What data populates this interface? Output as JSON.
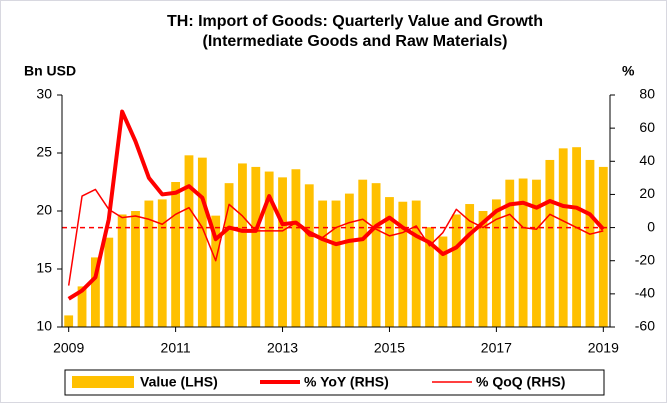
{
  "chart_data": {
    "type": "bar_line",
    "title": "TH: Import of Goods: Quarterly Value and Growth",
    "subtitle": "(Intermediate Goods and Raw Materials)",
    "ylabel": "Bn USD",
    "y2label": "%",
    "categories": [
      "2009",
      null,
      null,
      null,
      null,
      null,
      null,
      null,
      "2011",
      null,
      null,
      null,
      null,
      null,
      null,
      null,
      "2013",
      null,
      null,
      null,
      null,
      null,
      null,
      null,
      "2015",
      null,
      null,
      null,
      null,
      null,
      null,
      null,
      "2017",
      null,
      null,
      null,
      null,
      null,
      null,
      null,
      "2019"
    ],
    "series": [
      {
        "name": "Value (LHS)",
        "type": "bar",
        "color": "#FFC000",
        "values": [
          11.0,
          13.5,
          16.0,
          17.7,
          19.7,
          20.0,
          20.9,
          21.0,
          22.5,
          24.8,
          24.6,
          19.6,
          22.4,
          24.1,
          23.8,
          23.4,
          22.9,
          23.6,
          22.3,
          20.9,
          20.9,
          21.5,
          22.7,
          22.4,
          21.2,
          20.8,
          20.9,
          18.6,
          17.8,
          19.7,
          20.6,
          20.0,
          21.0,
          22.7,
          22.8,
          22.7,
          24.4,
          25.4,
          25.5,
          24.4,
          23.8
        ]
      },
      {
        "name": "% YoY (RHS)",
        "type": "line",
        "axis": "y2",
        "color": "#FF0000",
        "width": 4,
        "values": [
          -43,
          -38,
          -30,
          5,
          70,
          52,
          30,
          20,
          21,
          25,
          18,
          -7,
          0,
          -2,
          -2,
          19,
          2,
          3,
          -3,
          -7,
          -10,
          -8,
          -7,
          1,
          6,
          0,
          -5,
          -9,
          -16,
          -12,
          -4,
          3,
          10,
          14,
          15,
          12,
          16,
          13,
          12,
          8,
          -1
        ]
      },
      {
        "name": "% QoQ (RHS)",
        "type": "line",
        "axis": "y2",
        "color": "#FF0000",
        "width": 1.5,
        "values": [
          -35,
          19,
          23,
          11,
          6,
          7,
          5,
          2,
          8,
          12,
          0,
          -20,
          14,
          7,
          -2,
          -2,
          -2,
          3,
          -5,
          -6,
          0,
          3,
          5,
          -1,
          -5,
          -3,
          1,
          -11,
          -3,
          11,
          4,
          0,
          5,
          8,
          0,
          -1,
          8,
          4,
          0,
          -4,
          -2
        ]
      }
    ],
    "ylim": [
      10,
      30
    ],
    "yticks": [
      10,
      15,
      20,
      25,
      30
    ],
    "y2lim": [
      -60,
      80
    ],
    "y2ticks": [
      -60,
      -40,
      -20,
      0,
      20,
      40,
      60,
      80
    ],
    "reference_line_y2": 0,
    "reference_color": "#FF0000",
    "legend": "bottom"
  }
}
